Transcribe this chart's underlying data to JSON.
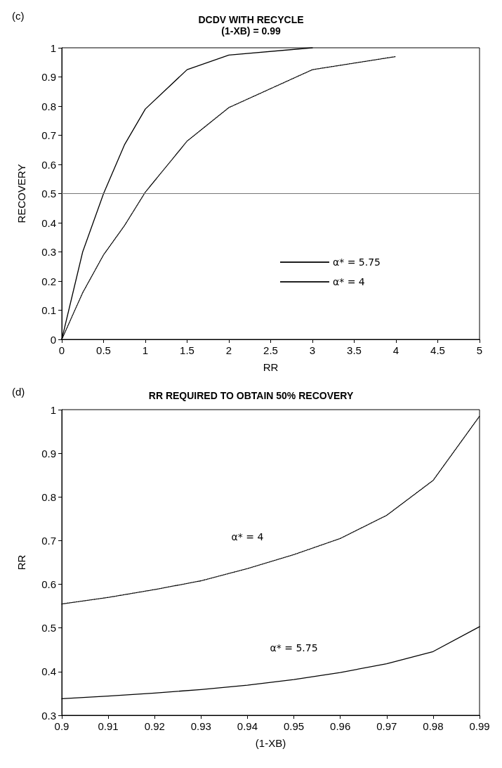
{
  "chart_data": [
    {
      "type": "line",
      "title": "DCDV WITH RECYCLE",
      "subtitle": "(1-XB) = 0.99",
      "xlabel": "RR",
      "ylabel": "RECOVERY",
      "annotations": [
        "(c)"
      ],
      "xlim": [
        0,
        5
      ],
      "xticks": [
        0,
        0.5,
        1,
        1.5,
        2,
        2.5,
        3,
        3.5,
        4,
        4.5,
        5
      ],
      "ylim": [
        0,
        1
      ],
      "yticks": [
        0,
        0.1,
        0.2,
        0.3,
        0.4,
        0.5,
        0.6,
        0.7,
        0.8,
        0.9,
        1
      ],
      "grid": false,
      "legend": "bottom right",
      "marker": "none",
      "ref_lines": [
        {
          "axis": "y",
          "value": 0.5,
          "color": "#777777"
        }
      ],
      "series": [
        {
          "name": "α* = 5.75",
          "color": "#000000",
          "line_style": "solid",
          "x": [
            0,
            0.25,
            0.5,
            0.75,
            1,
            1.5,
            2,
            3
          ],
          "values": [
            0,
            0.3,
            0.5,
            0.667,
            0.79,
            0.925,
            0.975,
            1.0
          ]
        },
        {
          "name": "α* = 4",
          "color": "#000000",
          "line_style": "dotted",
          "x": [
            0,
            0.25,
            0.5,
            0.75,
            1,
            1.5,
            2,
            3,
            4
          ],
          "values": [
            0,
            0.16,
            0.29,
            0.39,
            0.505,
            0.68,
            0.795,
            0.925,
            0.97
          ]
        }
      ]
    },
    {
      "type": "line",
      "title": "RR REQUIRED TO OBTAIN 50% RECOVERY",
      "xlabel": "(1-XB)",
      "ylabel": "RR",
      "annotations": [
        "(d)"
      ],
      "xlim": [
        0.9,
        0.99
      ],
      "xticks": [
        0.9,
        0.91,
        0.92,
        0.93,
        0.94,
        0.95,
        0.96,
        0.97,
        0.98,
        0.99
      ],
      "ylim": [
        0.3,
        1
      ],
      "yticks": [
        0.3,
        0.4,
        0.5,
        0.6,
        0.7,
        0.8,
        0.9,
        1
      ],
      "grid": false,
      "legend": false,
      "marker": "none",
      "series": [
        {
          "name": "α* = 4",
          "color": "#000000",
          "line_style": "dotted",
          "x": [
            0.9,
            0.91,
            0.92,
            0.93,
            0.94,
            0.95,
            0.96,
            0.97,
            0.98,
            0.99
          ],
          "values": [
            0.555,
            0.57,
            0.588,
            0.608,
            0.636,
            0.668,
            0.705,
            0.758,
            0.838,
            0.985
          ]
        },
        {
          "name": "α* = 5.75",
          "color": "#000000",
          "line_style": "solid",
          "x": [
            0.9,
            0.91,
            0.92,
            0.93,
            0.94,
            0.95,
            0.96,
            0.97,
            0.98,
            0.99
          ],
          "values": [
            0.338,
            0.344,
            0.351,
            0.359,
            0.369,
            0.382,
            0.398,
            0.418,
            0.446,
            0.503
          ]
        }
      ]
    }
  ]
}
